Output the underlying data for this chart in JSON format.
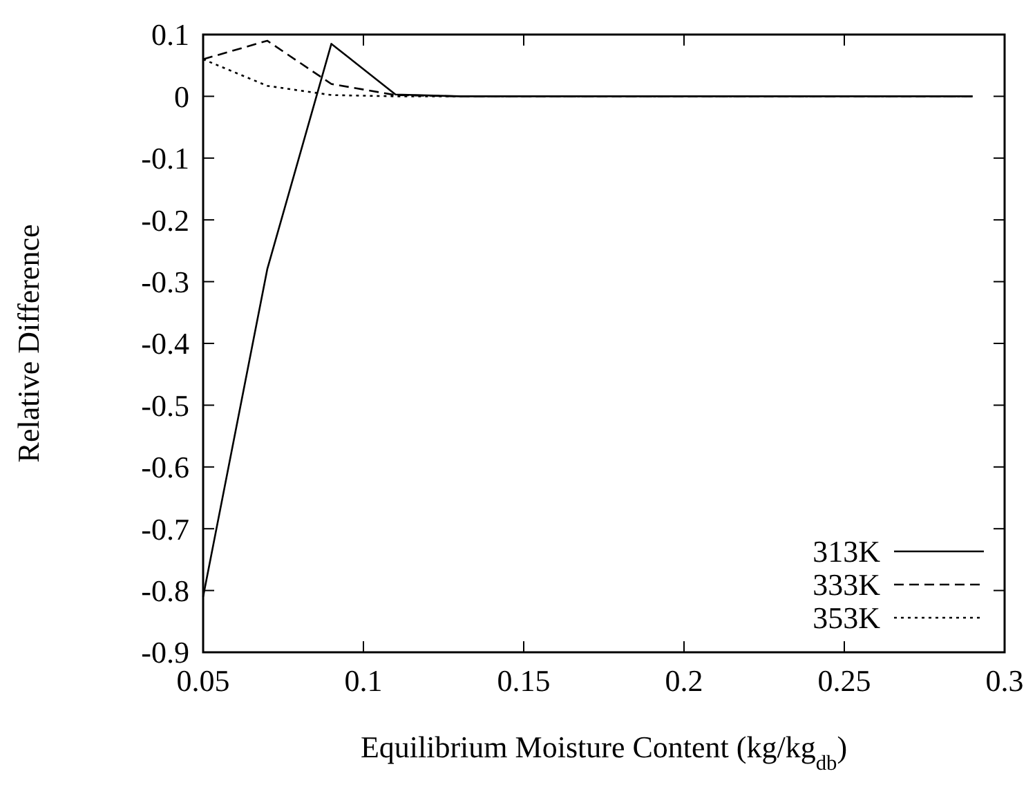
{
  "chart_data": {
    "type": "line",
    "xlabel": "Equilibrium Moisture Content (kg/kg$_{db}$)",
    "ylabel": "Relative Difference",
    "x": [
      0.05,
      0.07,
      0.09,
      0.11,
      0.13,
      0.15,
      0.17,
      0.19,
      0.21,
      0.23,
      0.25,
      0.27,
      0.29
    ],
    "xlim": [
      0.05,
      0.3
    ],
    "xticks": [
      {
        "value": 0.05,
        "label": "0.05"
      },
      {
        "value": 0.1,
        "label": "0.1"
      },
      {
        "value": 0.15,
        "label": "0.15"
      },
      {
        "value": 0.2,
        "label": "0.2"
      },
      {
        "value": 0.25,
        "label": "0.25"
      },
      {
        "value": 0.3,
        "label": "0.3"
      }
    ],
    "ylim": [
      -0.9,
      0.1
    ],
    "yticks": [
      {
        "value": 0.1,
        "label": "0.1"
      },
      {
        "value": 0,
        "label": "0"
      },
      {
        "value": -0.1,
        "label": "-0.1"
      },
      {
        "value": -0.2,
        "label": "-0.2"
      },
      {
        "value": -0.3,
        "label": "-0.3"
      },
      {
        "value": -0.4,
        "label": "-0.4"
      },
      {
        "value": -0.5,
        "label": "-0.5"
      },
      {
        "value": -0.6,
        "label": "-0.6"
      },
      {
        "value": -0.7,
        "label": "-0.7"
      },
      {
        "value": -0.8,
        "label": "-0.8"
      },
      {
        "value": -0.9,
        "label": "-0.9"
      }
    ],
    "legend": "bottom right",
    "grid": false,
    "series": [
      {
        "name": "313K",
        "color": "#000000",
        "line_style": "solid",
        "values": [
          -0.81,
          -0.28,
          0.085,
          0.003,
          0,
          0,
          0,
          0,
          0,
          0,
          0,
          0,
          0
        ]
      },
      {
        "name": "333K",
        "color": "#000000",
        "line_style": "dashed",
        "values": [
          0.06,
          0.09,
          0.02,
          0.002,
          0,
          0,
          0,
          0,
          0,
          0,
          0,
          0,
          0
        ]
      },
      {
        "name": "353K",
        "color": "#000000",
        "line_style": "dotted",
        "values": [
          0.06,
          0.017,
          0.002,
          0,
          0,
          0,
          0,
          0,
          0,
          0,
          0,
          0,
          0
        ]
      }
    ]
  }
}
